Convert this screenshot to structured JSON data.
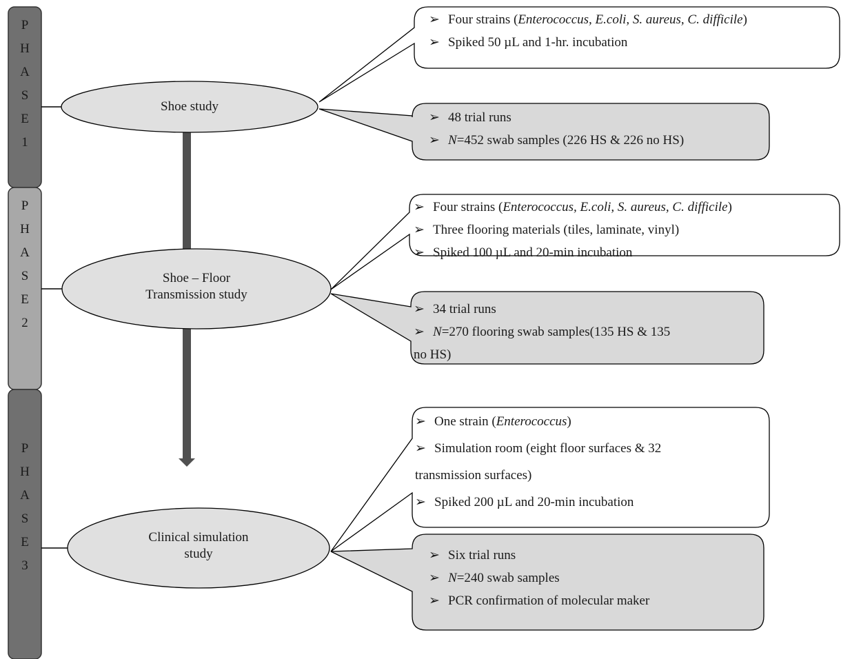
{
  "phases": [
    {
      "letters": [
        "P",
        "H",
        "A",
        "S",
        "E",
        "1"
      ],
      "color": "#707070"
    },
    {
      "letters": [
        "P",
        "H",
        "A",
        "S",
        "E",
        "2"
      ],
      "color": "#a8a8a8"
    },
    {
      "letters": [
        "P",
        "H",
        "A",
        "S",
        "E",
        "3"
      ],
      "color": "#707070"
    }
  ],
  "studies": {
    "shoe": [
      "Shoe study"
    ],
    "floor": [
      "Shoe – Floor",
      "Transmission study"
    ],
    "clinical": [
      "Clinical simulation",
      "study"
    ]
  },
  "boxes": {
    "b1": {
      "lines": [
        {
          "bullet": "➢",
          "parts": [
            {
              "t": "Four strains ("
            },
            {
              "t": "Enterococcus, E.coli, S. aureus, C. difficile",
              "i": true
            },
            {
              "t": ")"
            }
          ]
        },
        {
          "bullet": "➢",
          "parts": [
            {
              "t": "Spiked 50 µL and 1-hr. incubation"
            }
          ]
        }
      ]
    },
    "b2": {
      "lines": [
        {
          "bullet": "➢",
          "parts": [
            {
              "t": "48 trial runs"
            }
          ]
        },
        {
          "bullet": "➢",
          "parts": [
            {
              "t": "N",
              "i": true
            },
            {
              "t": "=452 swab samples (226 HS & 226 no HS)"
            }
          ]
        }
      ]
    },
    "b3": {
      "lines": [
        {
          "bullet": "➢",
          "parts": [
            {
              "t": "Four strains ("
            },
            {
              "t": "Enterococcus, E.coli, S. aureus, C. difficile",
              "i": true
            },
            {
              "t": ")"
            }
          ]
        },
        {
          "bullet": "➢",
          "parts": [
            {
              "t": "Three flooring materials (tiles, laminate, vinyl)"
            }
          ]
        },
        {
          "bullet": "➢",
          "parts": [
            {
              "t": "Spiked 100 µL and 20-min incubation"
            }
          ]
        }
      ]
    },
    "b4": {
      "lines": [
        {
          "bullet": "➢",
          "parts": [
            {
              "t": "34 trial runs"
            }
          ]
        },
        {
          "bullet": "➢",
          "parts": [
            {
              "t": "N",
              "i": true
            },
            {
              "t": "=270 flooring swab samples(135 HS & 135"
            }
          ]
        },
        {
          "bullet": "",
          "parts": [
            {
              "t": "no HS)"
            }
          ]
        }
      ]
    },
    "b5": {
      "lines": [
        {
          "bullet": "➢",
          "parts": [
            {
              "t": "One strain ("
            },
            {
              "t": "Enterococcus",
              "i": true
            },
            {
              "t": ")"
            }
          ]
        },
        {
          "bullet": "➢",
          "parts": [
            {
              "t": "Simulation room (eight floor surfaces & 32"
            }
          ]
        },
        {
          "bullet": "",
          "parts": [
            {
              "t": "transmission surfaces)"
            }
          ]
        },
        {
          "bullet": "➢",
          "parts": [
            {
              "t": "Spiked 200 µL and 20-min incubation"
            }
          ]
        }
      ]
    },
    "b6": {
      "lines": [
        {
          "bullet": "➢",
          "parts": [
            {
              "t": "Six trial runs"
            }
          ]
        },
        {
          "bullet": "➢",
          "parts": [
            {
              "t": "N",
              "i": true
            },
            {
              "t": "=240 swab samples"
            }
          ]
        },
        {
          "bullet": "➢",
          "parts": [
            {
              "t": "PCR confirmation of molecular maker"
            }
          ]
        }
      ]
    }
  }
}
